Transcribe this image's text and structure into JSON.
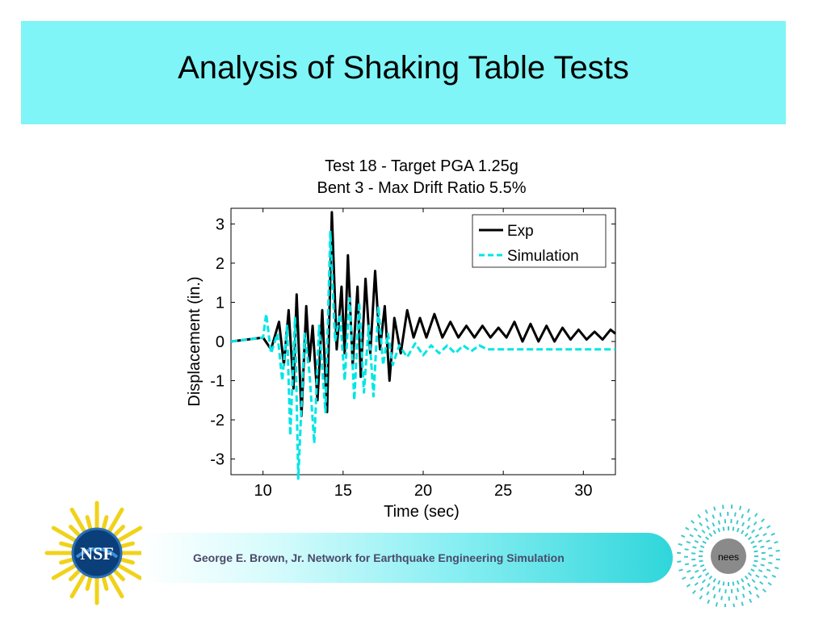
{
  "slide": {
    "title": "Analysis of Shaking Table Tests",
    "footer_text": "George E. Brown, Jr. Network for Earthquake Engineering Simulation"
  },
  "logos": {
    "left": {
      "text": "NSF",
      "icon": "nsf-logo"
    },
    "right": {
      "text": "nees",
      "icon": "nees-logo"
    }
  },
  "colors": {
    "title_band": "#7ff5f7",
    "exp_series": "#000000",
    "sim_series": "#00e5e5"
  },
  "chart_data": {
    "type": "line",
    "title": [
      "Test 18 - Target PGA 1.25g",
      "Bent 3 - Max Drift Ratio 5.5%"
    ],
    "xlabel": "Time (sec)",
    "ylabel": "Displacement (in.)",
    "xlim": [
      8,
      32
    ],
    "ylim": [
      -3.4,
      3.4
    ],
    "xticks": [
      10,
      15,
      20,
      25,
      30
    ],
    "yticks": [
      3,
      2,
      1,
      0,
      -1,
      -2,
      -3
    ],
    "legend": {
      "position": "top-right"
    },
    "series": [
      {
        "name": "Exp",
        "style": "solid",
        "points": [
          [
            8,
            0
          ],
          [
            9,
            0.05
          ],
          [
            10,
            0.1
          ],
          [
            10.5,
            -0.2
          ],
          [
            11,
            0.5
          ],
          [
            11.3,
            -0.6
          ],
          [
            11.6,
            0.8
          ],
          [
            11.9,
            -1.2
          ],
          [
            12.1,
            1.2
          ],
          [
            12.4,
            -1.9
          ],
          [
            12.7,
            0.9
          ],
          [
            12.9,
            -0.5
          ],
          [
            13.1,
            0.4
          ],
          [
            13.4,
            -1.5
          ],
          [
            13.7,
            0.8
          ],
          [
            14.0,
            -1.8
          ],
          [
            14.3,
            3.3
          ],
          [
            14.6,
            -0.2
          ],
          [
            14.9,
            1.4
          ],
          [
            15.1,
            -0.3
          ],
          [
            15.3,
            2.2
          ],
          [
            15.6,
            -0.6
          ],
          [
            15.9,
            1.4
          ],
          [
            16.1,
            -0.9
          ],
          [
            16.4,
            1.6
          ],
          [
            16.7,
            -0.3
          ],
          [
            17.0,
            1.8
          ],
          [
            17.3,
            -0.2
          ],
          [
            17.6,
            0.9
          ],
          [
            17.9,
            -1.0
          ],
          [
            18.2,
            0.6
          ],
          [
            18.6,
            -0.3
          ],
          [
            19.0,
            0.8
          ],
          [
            19.4,
            0.1
          ],
          [
            19.8,
            0.6
          ],
          [
            20.2,
            0.1
          ],
          [
            20.7,
            0.7
          ],
          [
            21.2,
            0.1
          ],
          [
            21.7,
            0.5
          ],
          [
            22.2,
            0.1
          ],
          [
            22.7,
            0.4
          ],
          [
            23.2,
            0.1
          ],
          [
            23.7,
            0.4
          ],
          [
            24.2,
            0.1
          ],
          [
            24.7,
            0.35
          ],
          [
            25.2,
            0.1
          ],
          [
            25.7,
            0.5
          ],
          [
            26.2,
            0.0
          ],
          [
            26.7,
            0.45
          ],
          [
            27.2,
            0.0
          ],
          [
            27.7,
            0.4
          ],
          [
            28.2,
            0.0
          ],
          [
            28.7,
            0.35
          ],
          [
            29.2,
            0.05
          ],
          [
            29.7,
            0.3
          ],
          [
            30.2,
            0.05
          ],
          [
            30.7,
            0.25
          ],
          [
            31.2,
            0.05
          ],
          [
            31.7,
            0.3
          ],
          [
            32,
            0.2
          ]
        ]
      },
      {
        "name": "Simulation",
        "style": "dashed",
        "points": [
          [
            8,
            0
          ],
          [
            9,
            0.05
          ],
          [
            10,
            0.1
          ],
          [
            10.2,
            0.7
          ],
          [
            10.5,
            -0.3
          ],
          [
            10.9,
            0.2
          ],
          [
            11.2,
            -1.0
          ],
          [
            11.5,
            0.4
          ],
          [
            11.7,
            -2.4
          ],
          [
            12.0,
            0.6
          ],
          [
            12.2,
            -3.5
          ],
          [
            12.6,
            0.2
          ],
          [
            12.9,
            -0.8
          ],
          [
            13.2,
            -2.6
          ],
          [
            13.5,
            0.4
          ],
          [
            13.9,
            -1.8
          ],
          [
            14.2,
            2.8
          ],
          [
            14.5,
            0.0
          ],
          [
            14.8,
            0.7
          ],
          [
            15.1,
            -1.0
          ],
          [
            15.4,
            1.1
          ],
          [
            15.7,
            -1.5
          ],
          [
            16.0,
            1.0
          ],
          [
            16.3,
            -1.3
          ],
          [
            16.6,
            0.4
          ],
          [
            16.9,
            -1.4
          ],
          [
            17.2,
            0.9
          ],
          [
            17.5,
            -0.6
          ],
          [
            17.8,
            0.2
          ],
          [
            18.1,
            -0.6
          ],
          [
            18.5,
            -0.1
          ],
          [
            19.0,
            -0.4
          ],
          [
            19.5,
            -0.05
          ],
          [
            20.0,
            -0.35
          ],
          [
            20.5,
            -0.1
          ],
          [
            21.0,
            -0.3
          ],
          [
            21.5,
            -0.1
          ],
          [
            22.0,
            -0.3
          ],
          [
            22.5,
            -0.1
          ],
          [
            23.0,
            -0.25
          ],
          [
            23.5,
            -0.1
          ],
          [
            24.0,
            -0.2
          ],
          [
            25,
            -0.2
          ],
          [
            26,
            -0.2
          ],
          [
            27,
            -0.2
          ],
          [
            28,
            -0.2
          ],
          [
            29,
            -0.2
          ],
          [
            30,
            -0.2
          ],
          [
            31,
            -0.2
          ],
          [
            32,
            -0.2
          ]
        ]
      }
    ]
  }
}
